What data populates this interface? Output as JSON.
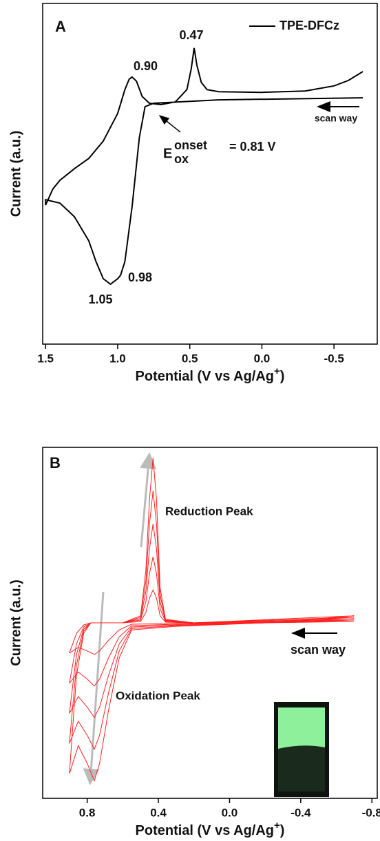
{
  "chart_data": [
    {
      "type": "line",
      "panel": "A",
      "y_label": "Current (a.u.)",
      "x_label": {
        "text": "Potential (V vs Ag/Ag",
        "sup": "+",
        "end": ")"
      },
      "xlim": [
        1.52,
        -0.8
      ],
      "ylim": [
        0,
        100
      ],
      "xticks": [
        1.5,
        {
          "value": 1,
          "label": "1.0"
        },
        0.5,
        {
          "value": 0,
          "label": "0.0"
        },
        -0.5
      ],
      "x": [
        -0.7,
        0.3,
        0.75,
        0.81,
        0.85,
        0.9,
        0.95,
        0.98,
        1.0,
        1.05,
        1.1,
        1.15,
        1.2,
        1.3,
        1.4,
        1.5,
        1.5,
        1.45,
        1.4,
        1.3,
        1.2,
        1.1,
        1.0,
        0.95,
        0.92,
        0.9,
        0.87,
        0.83,
        0.78,
        0.7,
        0.6,
        0.52,
        0.49,
        0.47,
        0.45,
        0.42,
        0.38,
        0.3,
        0.0,
        -0.3,
        -0.5,
        -0.6,
        -0.7
      ],
      "series": [
        {
          "name": "TPE-DFCz",
          "color": "#000000",
          "values": [
            72.3,
            71.7,
            70.7,
            69.7,
            60.6,
            40.4,
            24.2,
            20.2,
            19.2,
            17.6,
            19.2,
            24.2,
            30.3,
            37.4,
            41.4,
            42.4,
            40.8,
            45.5,
            48.1,
            51.5,
            54.5,
            59.6,
            67.7,
            74.7,
            77.8,
            78.4,
            77.2,
            72.7,
            70.7,
            70.3,
            71.1,
            74.7,
            80.8,
            86.9,
            81.8,
            76.8,
            74.7,
            74.1,
            73.9,
            74.3,
            75.8,
            77.4,
            80.0
          ]
        }
      ],
      "annotations": [
        "0.90",
        "0.47",
        "0.98",
        "1.05"
      ],
      "scan_label": "scan way",
      "onset": {
        "main": "E",
        "sup": "onset",
        "sub": "ox",
        "rest": "= 0.81 V"
      }
    },
    {
      "type": "line",
      "panel": "B",
      "y_label": "Current (a.u.)",
      "x_label": {
        "text": "Potential (V vs Ag/Ag",
        "sup": "+",
        "end": ")"
      },
      "xlim": [
        1.05,
        -0.83
      ],
      "ylim": [
        0,
        100
      ],
      "xticks": [
        0.8,
        0.4,
        {
          "value": 0,
          "label": "0.0"
        },
        -0.4,
        -0.8
      ],
      "x": [
        0.9,
        0.86,
        0.82,
        0.78,
        0.6,
        0.5,
        0.47,
        0.45,
        0.43,
        0.41,
        0.39,
        0.36,
        0.2,
        -0.7,
        -0.2,
        0.3,
        0.55,
        0.62,
        0.68,
        0.73,
        0.76,
        0.8,
        0.85,
        0.9
      ],
      "series": [
        {
          "color": "#ff2020",
          "values": [
            7,
            35,
            47,
            50,
            50,
            52,
            65,
            85,
            97,
            85,
            60,
            51,
            50,
            52,
            50,
            49,
            48,
            40,
            25,
            10,
            5,
            10,
            15,
            7
          ]
        },
        {
          "color": "#ff2020",
          "values": [
            15.6,
            38,
            47.6,
            50,
            50,
            51.6,
            62,
            78,
            87.6,
            78,
            58,
            50.8,
            50,
            51.6,
            50,
            49.2,
            48.4,
            42,
            30,
            18,
            14,
            18,
            22,
            15.6
          ]
        },
        {
          "color": "#ff2020",
          "values": [
            24.2,
            41,
            48.2,
            50,
            50,
            51.2,
            59,
            71,
            78.2,
            71,
            56,
            50.6,
            50,
            51.2,
            50,
            49.4,
            48.8,
            44,
            35,
            26,
            23,
            26,
            29,
            24.2
          ]
        },
        {
          "color": "#ff2020",
          "values": [
            32.8,
            44,
            48.8,
            50,
            50,
            50.8,
            56,
            64,
            68.8,
            64,
            54,
            50.4,
            50,
            50.8,
            50,
            49.6,
            49.2,
            46,
            40,
            34,
            32,
            34,
            36,
            32.8
          ]
        },
        {
          "color": "#ff2020",
          "values": [
            41.4,
            47,
            49.4,
            50,
            50,
            50.4,
            53,
            57,
            59.4,
            57,
            52,
            50.2,
            50,
            50.4,
            50,
            49.8,
            49.6,
            48,
            45,
            42,
            41,
            42,
            43,
            41.4
          ]
        }
      ],
      "annotations": [
        "Reduction Peak",
        "Oxidation Peak"
      ],
      "scan_label": "scan way"
    }
  ]
}
